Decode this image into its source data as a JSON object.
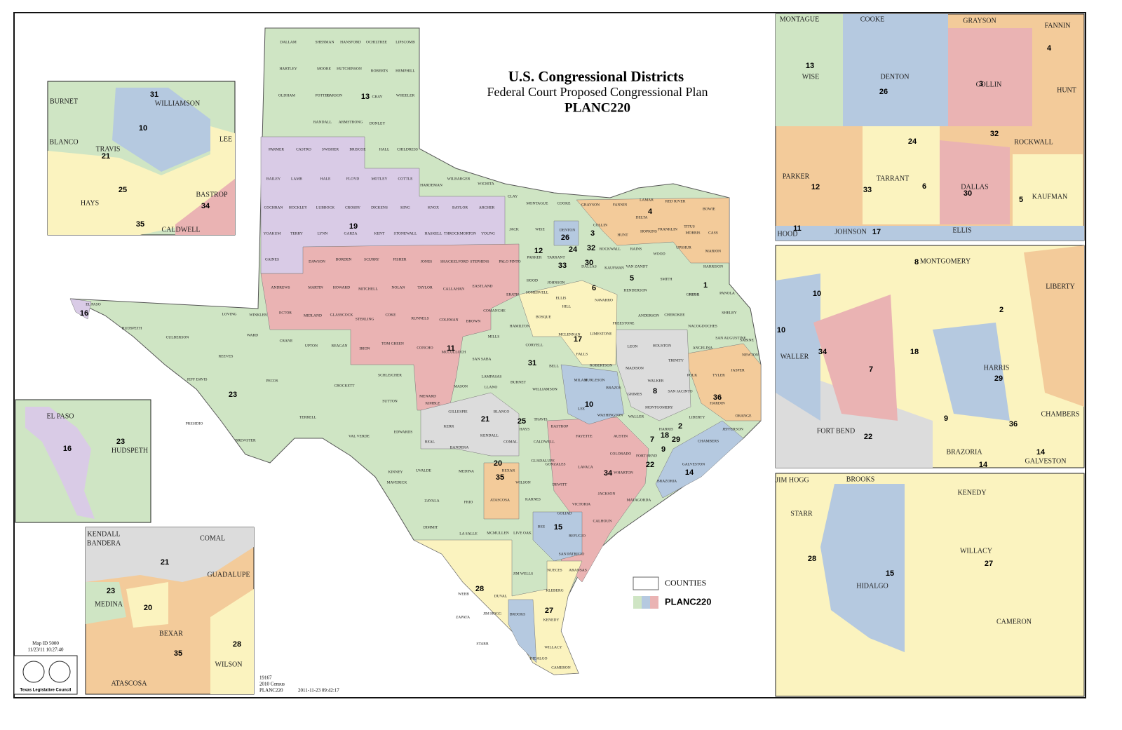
{
  "title": {
    "title": "U.S. Congressional Districts",
    "subtitle": "Federal Court Proposed Congressional Plan",
    "plan": "PLANC220"
  },
  "legend": {
    "counties": "COUNTIES",
    "plan": "PLANC220"
  },
  "footer": {
    "map_id": "Map ID 5000",
    "timestamp": "11/23/11 10:27:40",
    "council": "Texas Legislative Council",
    "number": "19167",
    "census": "2010 Census",
    "plan": "PLANC220",
    "date": "2011-11-23 09:42:17"
  },
  "main_map": {
    "district_labels": [
      "13",
      "19",
      "16",
      "23",
      "11",
      "31",
      "17",
      "12",
      "26",
      "3",
      "24",
      "32",
      "33",
      "30",
      "5",
      "6",
      "4",
      "1",
      "10",
      "8",
      "36",
      "21",
      "25",
      "18",
      "2",
      "7",
      "29",
      "9",
      "22",
      "14",
      "20",
      "35",
      "34",
      "15",
      "28",
      "27"
    ],
    "county_labels": [
      "DALLAM",
      "SHERMAN",
      "HANSFORD",
      "OCHILTREE",
      "LIPSCOMB",
      "HARTLEY",
      "MOORE",
      "HUTCHINSON",
      "ROBERTS",
      "HEMPHILL",
      "OLDHAM",
      "POTTER",
      "CARSON",
      "GRAY",
      "WHEELER",
      "RANDALL",
      "ARMSTRONG",
      "DONLEY",
      "PARMER",
      "CASTRO",
      "SWISHER",
      "BRISCOE",
      "HALL",
      "CHILDRESS",
      "BAILEY",
      "LAMB",
      "HALE",
      "FLOYD",
      "MOTLEY",
      "COTTLE",
      "HARDEMAN",
      "WILBARGER",
      "WICHITA",
      "COCHRAN",
      "HOCKLEY",
      "LUBBOCK",
      "CROSBY",
      "DICKENS",
      "KING",
      "KNOX",
      "BAYLOR",
      "ARCHER",
      "CLAY",
      "MONTAGUE",
      "COOKE",
      "GRAYSON",
      "FANNIN",
      "LAMAR",
      "RED RIVER",
      "BOWIE",
      "YOAKUM",
      "TERRY",
      "LYNN",
      "GARZA",
      "KENT",
      "STONEWALL",
      "HASKELL",
      "THROCKMORTON",
      "YOUNG",
      "JACK",
      "WISE",
      "DENTON",
      "COLLIN",
      "HUNT",
      "DELTA",
      "HOPKINS",
      "FRANKLIN",
      "TITUS",
      "MORRIS",
      "CASS",
      "GAINES",
      "DAWSON",
      "BORDEN",
      "SCURRY",
      "FISHER",
      "JONES",
      "SHACKELFORD",
      "STEPHENS",
      "PALO PINTO",
      "PARKER",
      "TARRANT",
      "DALLAS",
      "ROCKWALL",
      "KAUFMAN",
      "RAINS",
      "WOOD",
      "UPSHUR",
      "MARION",
      "HARRISON",
      "ANDREWS",
      "MARTIN",
      "HOWARD",
      "MITCHELL",
      "NOLAN",
      "TAYLOR",
      "CALLAHAN",
      "EASTLAND",
      "ERATH",
      "HOOD",
      "JOHNSON",
      "ELLIS",
      "VAN ZANDT",
      "SMITH",
      "GREGG",
      "PANOLA",
      "EL PASO",
      "HUDSPETH",
      "CULBERSON",
      "LOVING",
      "WINKLER",
      "ECTOR",
      "MIDLAND",
      "GLASSCOCK",
      "STERLING",
      "COKE",
      "RUNNELS",
      "COLEMAN",
      "BROWN",
      "COMANCHE",
      "SOMERVELL",
      "HILL",
      "NAVARRO",
      "HENDERSON",
      "RUSK",
      "SHELBY",
      "WARD",
      "CRANE",
      "UPTON",
      "REAGAN",
      "IRION",
      "TOM GREEN",
      "CONCHO",
      "MCCULLOCH",
      "MILLS",
      "HAMILTON",
      "BOSQUE",
      "MCLENNAN",
      "LIMESTONE",
      "FREESTONE",
      "ANDERSON",
      "CHEROKEE",
      "NACOGDOCHES",
      "SAN AUGUSTINE",
      "SABINE",
      "REEVES",
      "JEFF DAVIS",
      "PECOS",
      "CROCKETT",
      "SCHLEICHER",
      "SUTTON",
      "MENARD",
      "KIMBLE",
      "SAN SABA",
      "LAMPASAS",
      "CORYELL",
      "BELL",
      "FALLS",
      "ROBERTSON",
      "LEON",
      "HOUSTON",
      "TRINITY",
      "ANGELINA",
      "NEWTON",
      "JASPER",
      "TYLER",
      "POLK",
      "MADISON",
      "WALKER",
      "SAN JACINTO",
      "HARDIN",
      "ORANGE",
      "PRESIDIO",
      "BREWSTER",
      "TERRELL",
      "VAL VERDE",
      "EDWARDS",
      "MASON",
      "LLANO",
      "BURNET",
      "WILLIAMSON",
      "MILAM",
      "BURLESON",
      "BRAZOS",
      "GRIMES",
      "MONTGOMERY",
      "LIBERTY",
      "JEFFERSON",
      "GILLESPIE",
      "BLANCO",
      "KERR",
      "KENDALL",
      "REAL",
      "BANDERA",
      "COMAL",
      "TRAVIS",
      "HAYS",
      "BASTROP",
      "LEE",
      "WASHINGTON",
      "WALLER",
      "HARRIS",
      "CHAMBERS",
      "FAYETTE",
      "AUSTIN",
      "CALDWELL",
      "GUADALUPE",
      "GONZALES",
      "LAVACA",
      "COLORADO",
      "FORT BEND",
      "GALVESTON",
      "KINNEY",
      "UVALDE",
      "MEDINA",
      "BEXAR",
      "WILSON",
      "DEWITT",
      "WHARTON",
      "BRAZORIA",
      "MAVERICK",
      "ZAVALA",
      "FRIO",
      "ATASCOSA",
      "KARNES",
      "VICTORIA",
      "JACKSON",
      "MATAGORDA",
      "DIMMIT",
      "LA SALLE",
      "MCMULLEN",
      "LIVE OAK",
      "BEE",
      "GOLIAD",
      "CALHOUN",
      "REFUGIO",
      "SAN PATRICIO",
      "ARANSAS",
      "WEBB",
      "DUVAL",
      "JIM WELLS",
      "NUECES",
      "KLEBERG",
      "ZAPATA",
      "JIM HOGG",
      "BROOKS",
      "KENEDY",
      "STARR",
      "HIDALGO",
      "WILLACY",
      "CAMERON"
    ]
  },
  "insets": [
    {
      "district_labels": [
        "31",
        "10",
        "21",
        "25",
        "34",
        "35"
      ],
      "county_labels": [
        "BURNET",
        "WILLIAMSON",
        "BLANCO",
        "TRAVIS",
        "LEE",
        "HAYS",
        "BASTROP",
        "CALDWELL"
      ]
    },
    {
      "district_labels": [
        "16",
        "23"
      ],
      "county_labels": [
        "EL PASO",
        "HUDSPETH"
      ]
    },
    {
      "district_labels": [
        "21",
        "23",
        "20",
        "35",
        "28"
      ],
      "county_labels": [
        "KENDALL",
        "BANDERA",
        "COMAL",
        "GUADALUPE",
        "MEDINA",
        "BEXAR",
        "WILSON",
        "ATASCOSA"
      ]
    },
    {
      "district_labels": [
        "13",
        "26",
        "3",
        "4",
        "24",
        "32",
        "12",
        "33",
        "6",
        "30",
        "5",
        "11",
        "17"
      ],
      "county_labels": [
        "MONTAGUE",
        "COOKE",
        "GRAYSON",
        "FANNIN",
        "WISE",
        "DENTON",
        "COLLIN",
        "HUNT",
        "ROCKWALL",
        "PARKER",
        "TARRANT",
        "DALLAS",
        "KAUFMAN",
        "HOOD",
        "JOHNSON",
        "ELLIS"
      ]
    },
    {
      "district_labels": [
        "8",
        "10",
        "10",
        "2",
        "34",
        "18",
        "7",
        "29",
        "9",
        "36",
        "22",
        "14",
        "14"
      ],
      "county_labels": [
        "MONTGOMERY",
        "LIBERTY",
        "WALLER",
        "HARRIS",
        "CHAMBERS",
        "FORT BEND",
        "BRAZORIA",
        "GALVESTON"
      ]
    },
    {
      "district_labels": [
        "28",
        "15",
        "27"
      ],
      "county_labels": [
        "JIM HOGG",
        "BROOKS",
        "KENEDY",
        "STARR",
        "WILLACY",
        "HIDALGO",
        "CAMERON"
      ]
    }
  ]
}
